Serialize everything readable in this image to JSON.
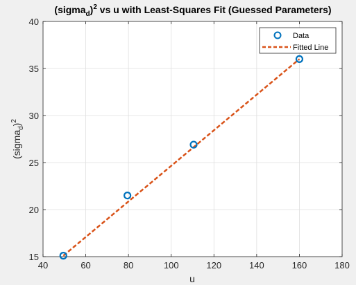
{
  "chart_data": {
    "type": "scatter",
    "title": "(sigma_d)^2 vs u with Least-Squares Fit (Guessed Parameters)",
    "xlabel": "u",
    "ylabel": "(sigma_d)^2",
    "xlim": [
      40,
      180
    ],
    "ylim": [
      15,
      40
    ],
    "xticks": [
      "40",
      "60",
      "80",
      "100",
      "120",
      "140",
      "160",
      "180"
    ],
    "yticks": [
      "15",
      "20",
      "25",
      "30",
      "35",
      "40"
    ],
    "grid": true,
    "legend_position": "top-right",
    "series": [
      {
        "name": "Data",
        "kind": "markers",
        "marker": "circle",
        "color": "#0072BD",
        "x": [
          49.5,
          79.5,
          110.5,
          160
        ],
        "y": [
          15.1,
          21.5,
          26.9,
          36.0
        ]
      },
      {
        "name": "Fitted Line",
        "kind": "line",
        "style": "dashed",
        "color": "#D95319",
        "x": [
          49.5,
          160
        ],
        "y": [
          15.1,
          36.0
        ]
      }
    ]
  }
}
